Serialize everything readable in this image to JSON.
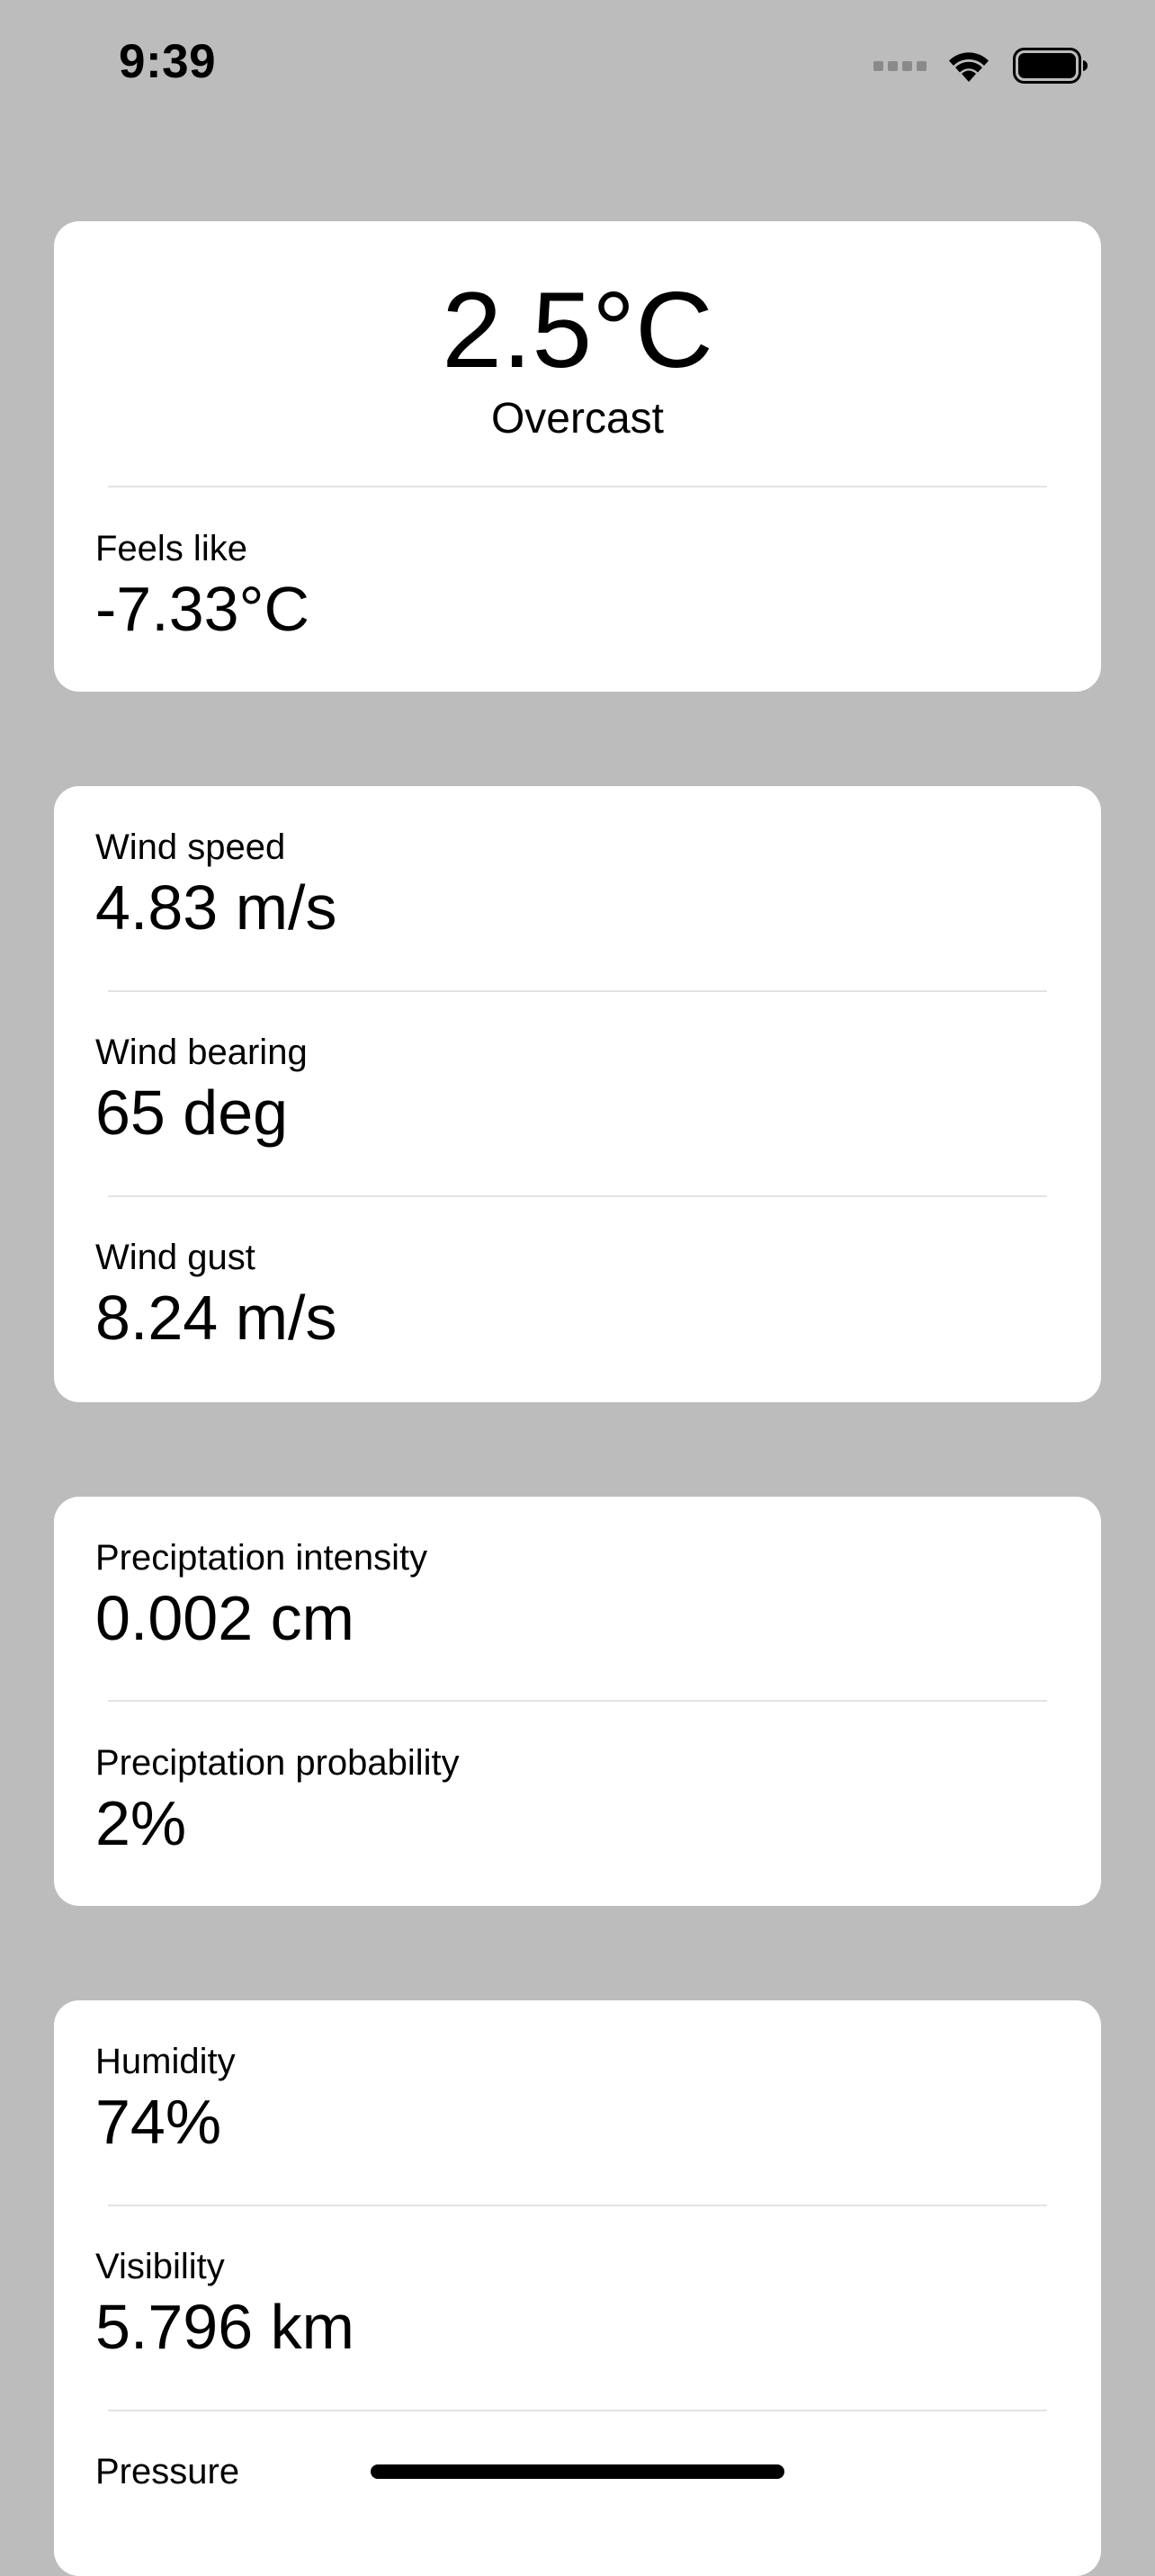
{
  "status_bar": {
    "time": "9:39"
  },
  "current": {
    "temperature": "2.5°C",
    "summary": "Overcast",
    "feels_like": {
      "label": "Feels like",
      "value": "-7.33°C"
    }
  },
  "wind": {
    "speed": {
      "label": "Wind speed",
      "value": "4.83 m/s"
    },
    "bearing": {
      "label": "Wind bearing",
      "value": "65 deg"
    },
    "gust": {
      "label": "Wind gust",
      "value": "8.24 m/s"
    }
  },
  "precipitation": {
    "intensity": {
      "label": "Preciptation intensity",
      "value": "0.002 cm"
    },
    "probability": {
      "label": "Preciptation probability",
      "value": "2%"
    }
  },
  "atmosphere": {
    "humidity": {
      "label": "Humidity",
      "value": "74%"
    },
    "visibility": {
      "label": "Visibility",
      "value": "5.796 km"
    },
    "pressure": {
      "label": "Pressure"
    }
  },
  "icons": {
    "signal": "cellular-signal-icon",
    "wifi": "wifi-icon",
    "battery": "battery-icon"
  }
}
